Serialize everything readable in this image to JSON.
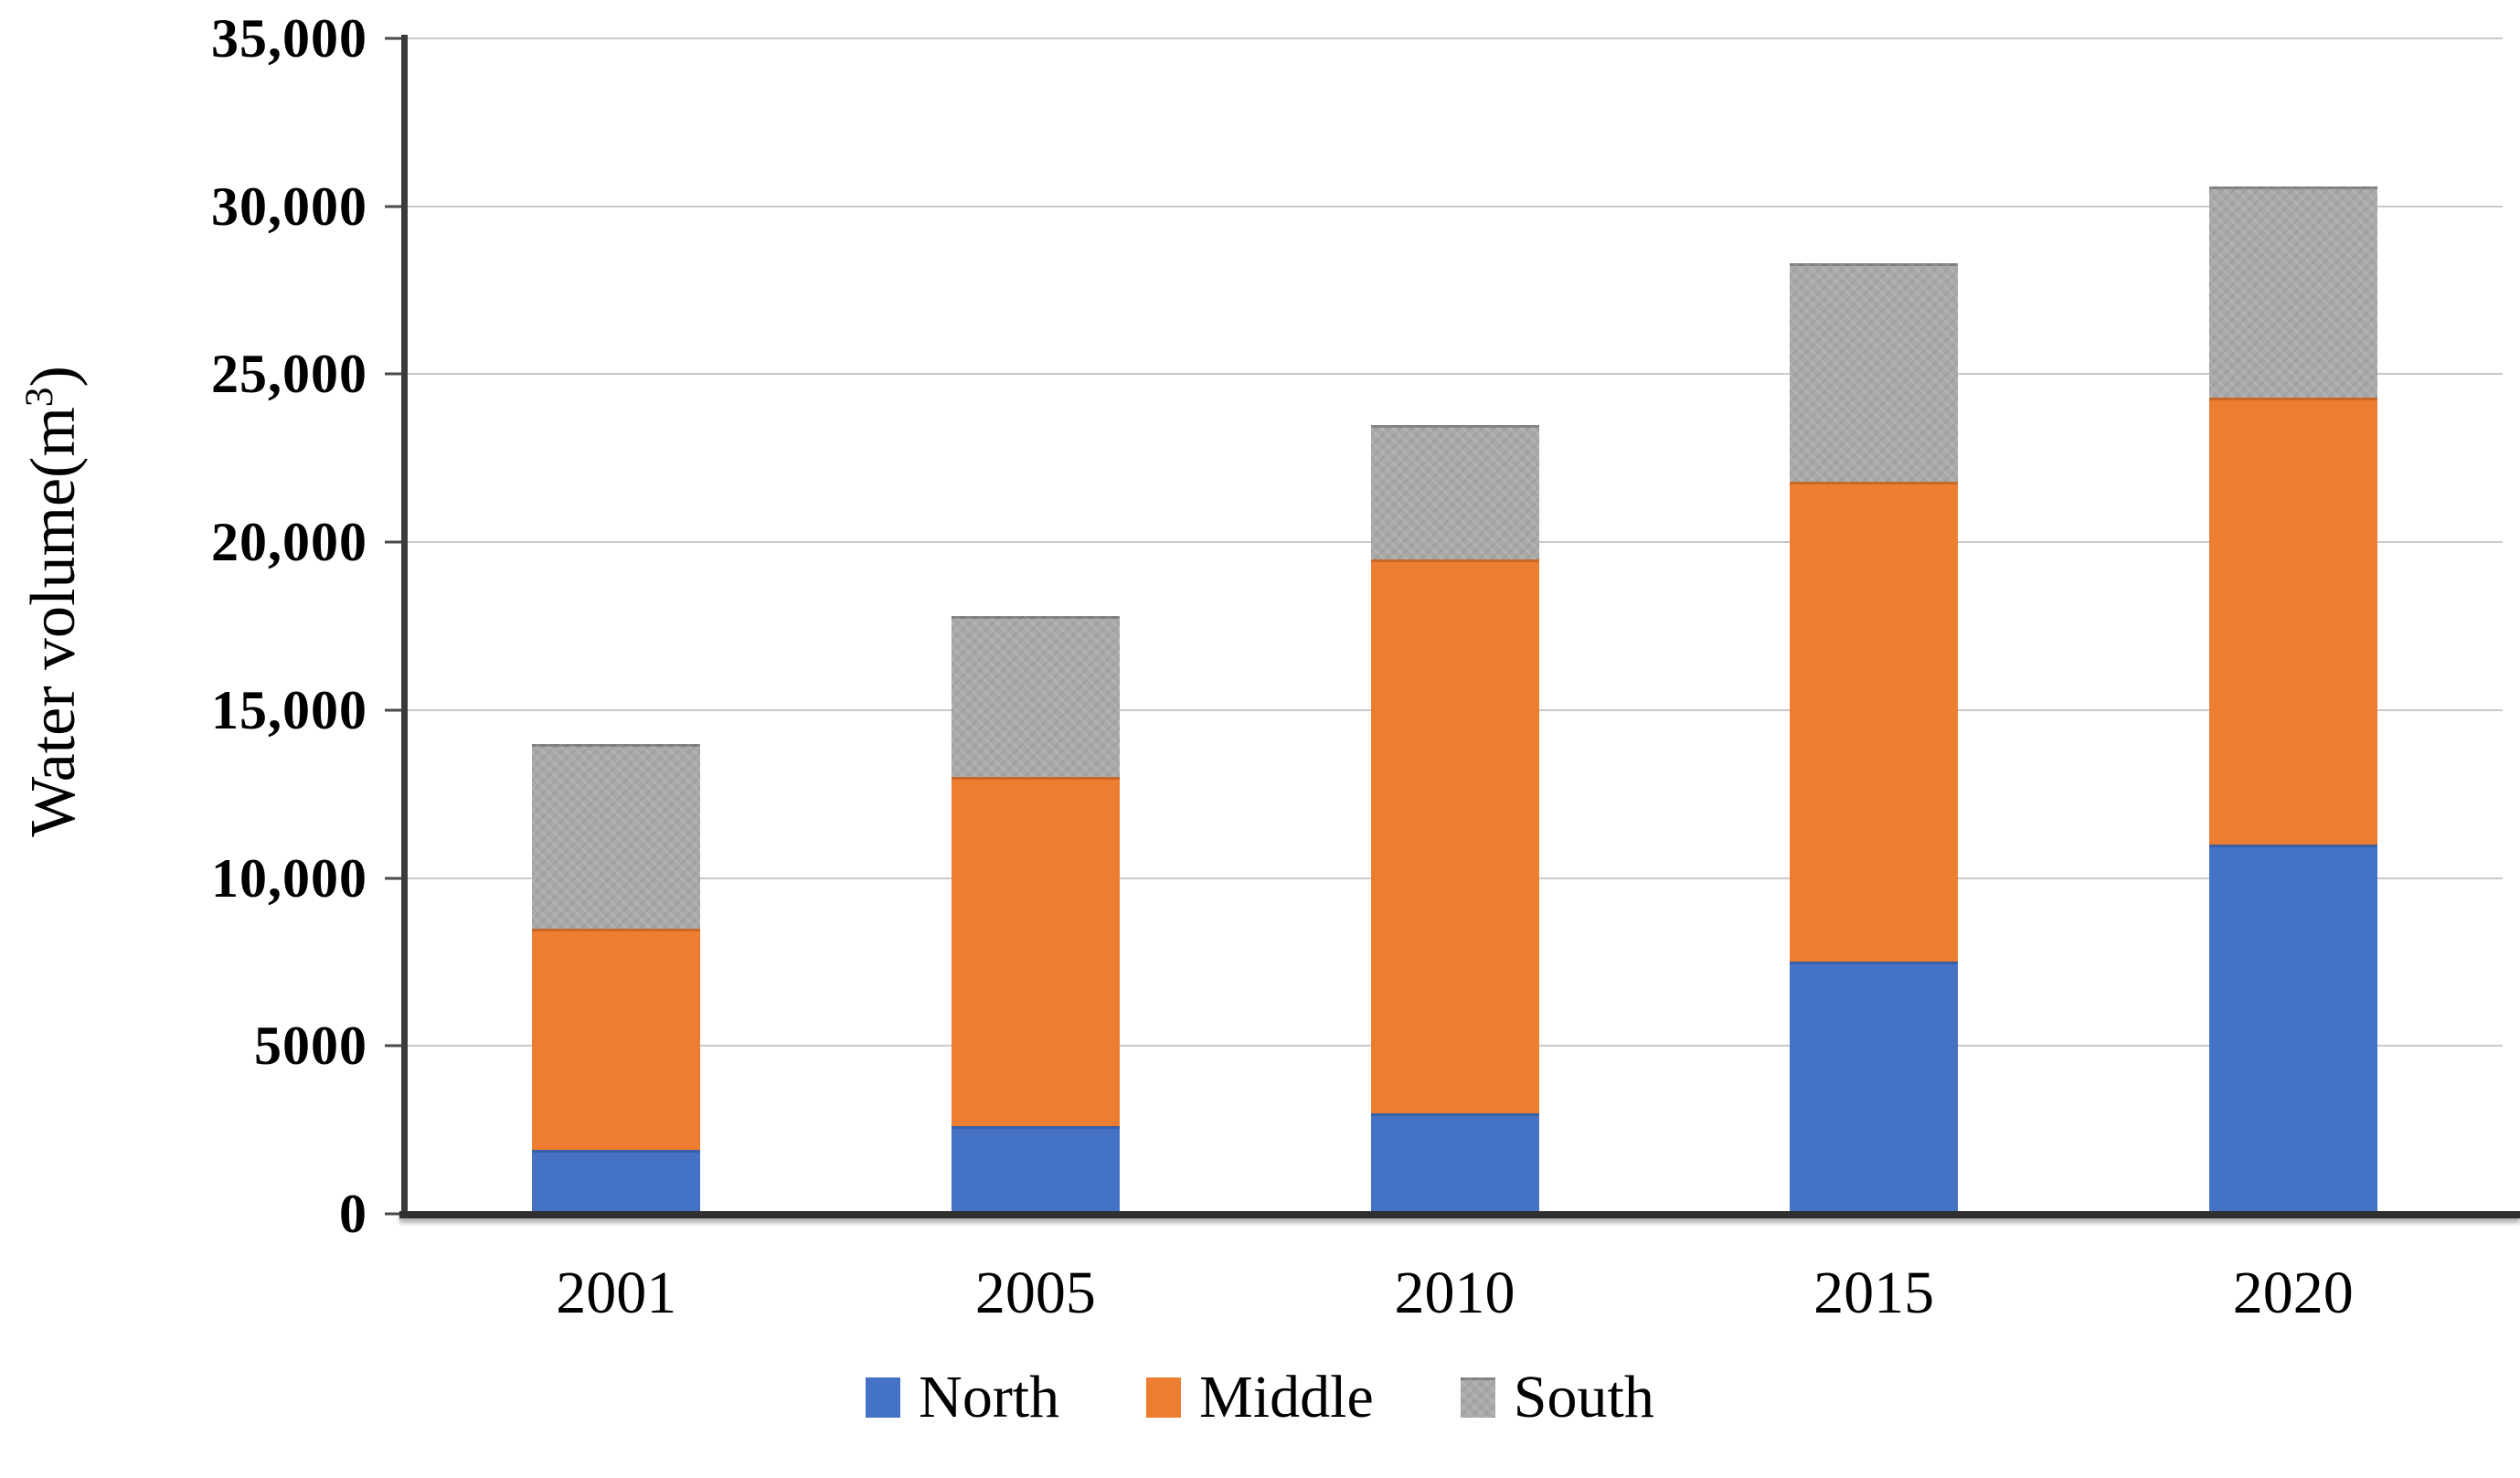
{
  "chart_data": {
    "type": "bar",
    "stacked": true,
    "categories": [
      "2001",
      "2005",
      "2010",
      "2015",
      "2020"
    ],
    "series": [
      {
        "name": "North",
        "color": "#4472C4",
        "values": [
          1900,
          2600,
          3000,
          7500,
          11000
        ]
      },
      {
        "name": "Middle",
        "color": "#ED7D31",
        "values": [
          6600,
          10400,
          16500,
          14300,
          13300
        ]
      },
      {
        "name": "South",
        "color": "#A9A9A9",
        "values": [
          5500,
          4800,
          4000,
          6500,
          6300
        ]
      }
    ],
    "title": "",
    "xlabel": "",
    "ylabel": "Water volume(m³)",
    "ylabel_parts": {
      "prefix": "Water volume(m",
      "sup": "3",
      "suffix": ")"
    },
    "ylim": [
      0,
      35000
    ],
    "ytick_interval": 5000,
    "ytick_labels": [
      "0",
      "5000",
      "10,000",
      "15,000",
      "20,000",
      "25,000",
      "30,000",
      "35,000"
    ],
    "grid": true,
    "gridline_color": "#C9C9C9",
    "axis_color": "#3B3B3B",
    "legend_position": "bottom"
  }
}
